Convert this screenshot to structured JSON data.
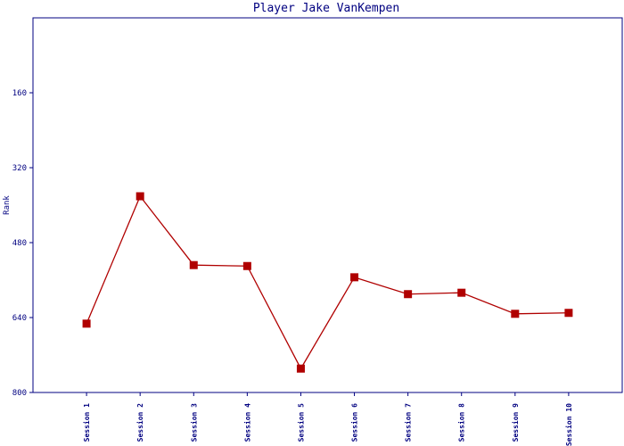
{
  "chart_data": {
    "type": "line",
    "title": "Player Jake VanKempen",
    "y_label": "Rank",
    "categories": [
      "Session 1",
      "Session 2",
      "Session 3",
      "Session 4",
      "Session 5",
      "Session 6",
      "Session 7",
      "Session 8",
      "Session 9",
      "Session 10"
    ],
    "series": [
      {
        "name": "Rank",
        "color": "#b00000",
        "values": [
          653,
          381,
          528,
          530,
          749,
          554,
          590,
          587,
          632,
          630
        ]
      }
    ],
    "ylim": [
      0,
      800
    ],
    "y_inverted": true,
    "yticks": [
      160,
      320,
      480,
      640,
      800
    ],
    "grid": false
  }
}
